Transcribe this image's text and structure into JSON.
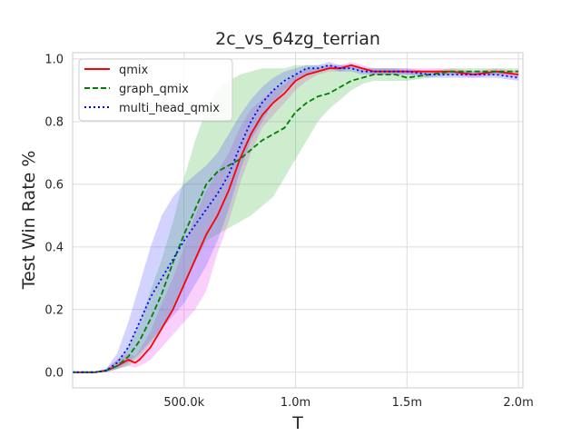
{
  "chart_data": {
    "type": "line",
    "title": "2c_vs_64zg_terrian",
    "xlabel": "T",
    "ylabel": "Test Win Rate %",
    "xlim": [
      0,
      2020000
    ],
    "ylim": [
      -0.05,
      1.02
    ],
    "x_ticks": [
      500000,
      1000000,
      1500000,
      2000000
    ],
    "x_tick_labels": [
      "500.0k",
      "1.0m",
      "1.5m",
      "2.0m"
    ],
    "y_ticks": [
      0.0,
      0.2,
      0.4,
      0.6,
      0.8,
      1.0
    ],
    "y_tick_labels": [
      "0.0",
      "0.2",
      "0.4",
      "0.6",
      "0.8",
      "1.0"
    ],
    "grid": true,
    "legend_position": "upper-left",
    "series": [
      {
        "name": "qmix",
        "color": "#ff0000",
        "band_color": "#ee40ee",
        "dash": "solid",
        "x": [
          0,
          100000,
          150000,
          200000,
          250000,
          280000,
          300000,
          350000,
          400000,
          450000,
          500000,
          550000,
          600000,
          650000,
          700000,
          750000,
          800000,
          850000,
          900000,
          950000,
          1000000,
          1050000,
          1100000,
          1150000,
          1200000,
          1250000,
          1300000,
          1350000,
          1400000,
          1500000,
          1600000,
          1700000,
          1800000,
          1900000,
          2000000
        ],
        "y": [
          0.0,
          0.0,
          0.005,
          0.02,
          0.04,
          0.03,
          0.04,
          0.08,
          0.14,
          0.2,
          0.28,
          0.36,
          0.44,
          0.5,
          0.58,
          0.68,
          0.76,
          0.82,
          0.86,
          0.89,
          0.93,
          0.95,
          0.96,
          0.97,
          0.97,
          0.98,
          0.97,
          0.96,
          0.96,
          0.96,
          0.96,
          0.96,
          0.95,
          0.96,
          0.95
        ],
        "lo": [
          0.0,
          0.0,
          0.0,
          0.01,
          0.02,
          0.015,
          0.02,
          0.04,
          0.08,
          0.12,
          0.16,
          0.2,
          0.26,
          0.38,
          0.48,
          0.6,
          0.7,
          0.78,
          0.82,
          0.86,
          0.9,
          0.93,
          0.95,
          0.96,
          0.96,
          0.97,
          0.96,
          0.95,
          0.95,
          0.95,
          0.95,
          0.95,
          0.94,
          0.95,
          0.94
        ],
        "hi": [
          0.0,
          0.0,
          0.01,
          0.04,
          0.06,
          0.05,
          0.07,
          0.13,
          0.22,
          0.3,
          0.4,
          0.5,
          0.58,
          0.64,
          0.7,
          0.78,
          0.84,
          0.87,
          0.9,
          0.92,
          0.95,
          0.97,
          0.97,
          0.98,
          0.98,
          0.99,
          0.98,
          0.97,
          0.97,
          0.97,
          0.97,
          0.97,
          0.96,
          0.97,
          0.96
        ]
      },
      {
        "name": "graph_qmix",
        "color": "#008000",
        "band_color": "#3cb43c",
        "dash": "dashed",
        "x": [
          0,
          100000,
          150000,
          200000,
          250000,
          300000,
          350000,
          400000,
          450000,
          500000,
          550000,
          600000,
          650000,
          700000,
          750000,
          800000,
          850000,
          900000,
          950000,
          1000000,
          1050000,
          1100000,
          1150000,
          1200000,
          1250000,
          1300000,
          1350000,
          1400000,
          1450000,
          1500000,
          1600000,
          1700000,
          1800000,
          1900000,
          2000000
        ],
        "y": [
          0.0,
          0.0,
          0.005,
          0.02,
          0.05,
          0.1,
          0.17,
          0.25,
          0.35,
          0.44,
          0.52,
          0.6,
          0.64,
          0.66,
          0.68,
          0.71,
          0.74,
          0.76,
          0.78,
          0.83,
          0.86,
          0.88,
          0.89,
          0.91,
          0.93,
          0.94,
          0.95,
          0.95,
          0.95,
          0.94,
          0.95,
          0.96,
          0.96,
          0.96,
          0.96
        ],
        "lo": [
          0.0,
          0.0,
          0.0,
          0.01,
          0.02,
          0.05,
          0.09,
          0.14,
          0.2,
          0.28,
          0.35,
          0.42,
          0.44,
          0.46,
          0.48,
          0.5,
          0.53,
          0.56,
          0.62,
          0.68,
          0.74,
          0.8,
          0.84,
          0.87,
          0.9,
          0.92,
          0.93,
          0.93,
          0.93,
          0.93,
          0.94,
          0.95,
          0.95,
          0.95,
          0.95
        ],
        "hi": [
          0.0,
          0.0,
          0.01,
          0.04,
          0.08,
          0.16,
          0.26,
          0.36,
          0.48,
          0.62,
          0.74,
          0.84,
          0.9,
          0.93,
          0.95,
          0.96,
          0.97,
          0.97,
          0.97,
          0.98,
          0.98,
          0.98,
          0.98,
          0.98,
          0.98,
          0.97,
          0.97,
          0.97,
          0.97,
          0.96,
          0.96,
          0.97,
          0.97,
          0.97,
          0.97
        ]
      },
      {
        "name": "multi_head_qmix",
        "color": "#0000ff",
        "band_color": "#5050ff",
        "dash": "dotted",
        "x": [
          0,
          100000,
          150000,
          200000,
          250000,
          300000,
          350000,
          400000,
          450000,
          500000,
          550000,
          600000,
          650000,
          700000,
          750000,
          800000,
          850000,
          900000,
          950000,
          1000000,
          1050000,
          1100000,
          1150000,
          1200000,
          1250000,
          1300000,
          1400000,
          1500000,
          1600000,
          1700000,
          1800000,
          1900000,
          2000000
        ],
        "y": [
          0.0,
          0.0,
          0.005,
          0.03,
          0.08,
          0.16,
          0.24,
          0.3,
          0.36,
          0.42,
          0.47,
          0.52,
          0.57,
          0.63,
          0.72,
          0.8,
          0.86,
          0.9,
          0.93,
          0.95,
          0.97,
          0.97,
          0.98,
          0.97,
          0.97,
          0.96,
          0.96,
          0.96,
          0.95,
          0.95,
          0.95,
          0.95,
          0.94
        ],
        "lo": [
          0.0,
          0.0,
          0.0,
          0.01,
          0.03,
          0.06,
          0.1,
          0.14,
          0.18,
          0.22,
          0.28,
          0.34,
          0.42,
          0.52,
          0.64,
          0.74,
          0.8,
          0.86,
          0.9,
          0.93,
          0.95,
          0.96,
          0.97,
          0.96,
          0.96,
          0.95,
          0.95,
          0.95,
          0.94,
          0.94,
          0.94,
          0.94,
          0.93
        ],
        "hi": [
          0.0,
          0.0,
          0.01,
          0.06,
          0.16,
          0.28,
          0.4,
          0.5,
          0.56,
          0.6,
          0.63,
          0.66,
          0.7,
          0.76,
          0.82,
          0.87,
          0.91,
          0.94,
          0.96,
          0.97,
          0.98,
          0.98,
          0.99,
          0.98,
          0.98,
          0.97,
          0.97,
          0.97,
          0.96,
          0.96,
          0.96,
          0.96,
          0.95
        ]
      }
    ]
  }
}
